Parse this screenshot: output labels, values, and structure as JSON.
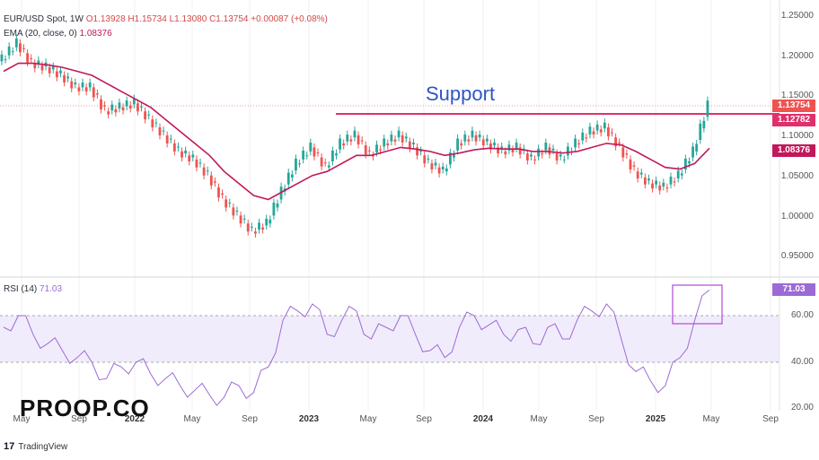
{
  "legend": {
    "symbol": "EUR/USD Spot, 1W",
    "open": "O1.13928",
    "high": "H1.15734",
    "low": "L1.13080",
    "close": "C1.13754",
    "change": "+0.00087 (+0.08%)",
    "ema_label": "EMA (20, close, 0)",
    "ema_value": "1.08376",
    "rsi_label": "RSI (14)",
    "rsi_value": "71.03"
  },
  "annotation": {
    "support_label": "Support"
  },
  "price_axis": [
    "1.25000",
    "1.20000",
    "1.15000",
    "1.10000",
    "1.05000",
    "1.00000",
    "0.95000"
  ],
  "price_tags": {
    "last_price": "1.13754",
    "support_level": "1.12782",
    "ema": "1.08376",
    "rsi": "71.03"
  },
  "rsi_axis": [
    "60.00",
    "40.00",
    "20.00"
  ],
  "time_axis": [
    {
      "label": "May",
      "bold": false
    },
    {
      "label": "Sep",
      "bold": false
    },
    {
      "label": "2022",
      "bold": true
    },
    {
      "label": "May",
      "bold": false
    },
    {
      "label": "Sep",
      "bold": false
    },
    {
      "label": "2023",
      "bold": true
    },
    {
      "label": "May",
      "bold": false
    },
    {
      "label": "Sep",
      "bold": false
    },
    {
      "label": "2024",
      "bold": true
    },
    {
      "label": "May",
      "bold": false
    },
    {
      "label": "Sep",
      "bold": false
    },
    {
      "label": "2025",
      "bold": true
    },
    {
      "label": "May",
      "bold": false
    },
    {
      "label": "Sep",
      "bold": false
    }
  ],
  "branding": {
    "tradingview": "TradingView",
    "brand_text": "PROOP.CO"
  },
  "colors": {
    "up": "#26a69a",
    "down": "#ef5350",
    "ema": "#c2185b",
    "support": "#e0306c",
    "rsi": "#9c6ad6",
    "rsi_band": "#f1ecfb",
    "support_text": "#2f55c6"
  },
  "chart_data": {
    "type": "candlestick",
    "title": "EUR/USD Spot, 1W",
    "x": [
      "2021-04",
      "2021-05",
      "2021-06",
      "2021-07",
      "2021-08",
      "2021-09",
      "2021-10",
      "2021-11",
      "2021-12",
      "2022-01",
      "2022-02",
      "2022-03",
      "2022-04",
      "2022-05",
      "2022-06",
      "2022-07",
      "2022-08",
      "2022-09",
      "2022-10",
      "2022-11",
      "2022-12",
      "2023-01",
      "2023-02",
      "2023-03",
      "2023-04",
      "2023-05",
      "2023-06",
      "2023-07",
      "2023-08",
      "2023-09",
      "2023-10",
      "2023-11",
      "2023-12",
      "2024-01",
      "2024-02",
      "2024-03",
      "2024-04",
      "2024-05",
      "2024-06",
      "2024-07",
      "2024-08",
      "2024-09",
      "2024-10",
      "2024-11",
      "2024-12",
      "2025-01",
      "2025-02",
      "2025-03",
      "2025-04"
    ],
    "close": [
      1.195,
      1.215,
      1.19,
      1.185,
      1.175,
      1.16,
      1.16,
      1.13,
      1.135,
      1.14,
      1.12,
      1.1,
      1.08,
      1.07,
      1.05,
      1.02,
      1.0,
      0.98,
      0.99,
      1.03,
      1.065,
      1.085,
      1.06,
      1.09,
      1.1,
      1.075,
      1.09,
      1.1,
      1.085,
      1.065,
      1.055,
      1.09,
      1.1,
      1.09,
      1.08,
      1.085,
      1.07,
      1.085,
      1.07,
      1.09,
      1.105,
      1.11,
      1.085,
      1.055,
      1.04,
      1.035,
      1.05,
      1.08,
      1.1375
    ],
    "ema20": [
      1.18,
      1.19,
      1.19,
      1.188,
      1.185,
      1.18,
      1.175,
      1.165,
      1.155,
      1.145,
      1.135,
      1.12,
      1.105,
      1.09,
      1.075,
      1.055,
      1.04,
      1.025,
      1.02,
      1.03,
      1.04,
      1.05,
      1.055,
      1.065,
      1.075,
      1.075,
      1.08,
      1.085,
      1.083,
      1.08,
      1.075,
      1.078,
      1.082,
      1.084,
      1.083,
      1.083,
      1.08,
      1.08,
      1.078,
      1.08,
      1.085,
      1.09,
      1.088,
      1.08,
      1.07,
      1.06,
      1.058,
      1.065,
      1.084
    ],
    "rsi": [
      55,
      60,
      52,
      48,
      45,
      42,
      40,
      33,
      38,
      40,
      35,
      33,
      30,
      28,
      26,
      25,
      30,
      27,
      38,
      58,
      62,
      65,
      52,
      58,
      62,
      50,
      55,
      60,
      52,
      45,
      42,
      55,
      60,
      56,
      52,
      54,
      48,
      55,
      50,
      58,
      62,
      65,
      50,
      36,
      32,
      30,
      42,
      58,
      71
    ],
    "support": 1.12782,
    "ylim": [
      0.93,
      1.26
    ],
    "rsi_lim": [
      20,
      80
    ],
    "rsi_band": [
      40,
      60
    ]
  }
}
